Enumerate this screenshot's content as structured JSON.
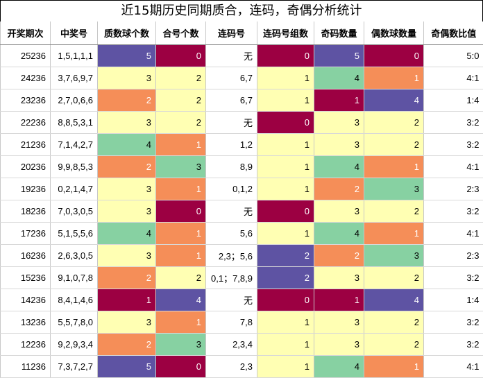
{
  "title": "近15期历史同期质合，连码，奇偶分析统计",
  "headers": [
    "开奖期次",
    "中奖号",
    "质数球个数",
    "合号个数",
    "连码号",
    "连码号组数",
    "奇码数量",
    "偶数球数量",
    "奇偶数比值"
  ],
  "colors": {
    "yellow": "#ffffb3",
    "orange": "#f58e58",
    "green": "#87d1a2",
    "purple": "#5e53a3",
    "crimson": "#9c0042",
    "white": "#ffffff"
  },
  "rows": [
    {
      "cells": [
        "25236",
        "1,5,1,1,1",
        "5",
        "0",
        "无",
        "0",
        "5",
        "0",
        "5:0"
      ],
      "fills": [
        "white",
        "white",
        "purple",
        "crimson",
        "white",
        "crimson",
        "purple",
        "crimson",
        "white"
      ]
    },
    {
      "cells": [
        "24236",
        "3,7,6,9,7",
        "3",
        "2",
        "6,7",
        "1",
        "4",
        "1",
        "4:1"
      ],
      "fills": [
        "white",
        "white",
        "yellow",
        "yellow",
        "white",
        "yellow",
        "green",
        "orange",
        "white"
      ]
    },
    {
      "cells": [
        "23236",
        "2,7,0,6,6",
        "2",
        "2",
        "6,7",
        "1",
        "1",
        "4",
        "1:4"
      ],
      "fills": [
        "white",
        "white",
        "orange",
        "yellow",
        "white",
        "yellow",
        "crimson",
        "purple",
        "white"
      ]
    },
    {
      "cells": [
        "22236",
        "8,8,5,3,1",
        "3",
        "2",
        "无",
        "0",
        "3",
        "2",
        "3:2"
      ],
      "fills": [
        "white",
        "white",
        "yellow",
        "yellow",
        "white",
        "crimson",
        "yellow",
        "yellow",
        "white"
      ]
    },
    {
      "cells": [
        "21236",
        "7,1,4,2,7",
        "4",
        "1",
        "1,2",
        "1",
        "3",
        "2",
        "3:2"
      ],
      "fills": [
        "white",
        "white",
        "green",
        "orange",
        "white",
        "yellow",
        "yellow",
        "yellow",
        "white"
      ]
    },
    {
      "cells": [
        "20236",
        "9,9,8,5,3",
        "2",
        "3",
        "8,9",
        "1",
        "4",
        "1",
        "4:1"
      ],
      "fills": [
        "white",
        "white",
        "orange",
        "green",
        "white",
        "yellow",
        "green",
        "orange",
        "white"
      ]
    },
    {
      "cells": [
        "19236",
        "0,2,1,4,7",
        "3",
        "1",
        "0,1,2",
        "1",
        "2",
        "3",
        "2:3"
      ],
      "fills": [
        "white",
        "white",
        "yellow",
        "orange",
        "white",
        "yellow",
        "orange",
        "green",
        "white"
      ]
    },
    {
      "cells": [
        "18236",
        "7,0,3,0,5",
        "3",
        "0",
        "无",
        "0",
        "3",
        "2",
        "3:2"
      ],
      "fills": [
        "white",
        "white",
        "yellow",
        "crimson",
        "white",
        "crimson",
        "yellow",
        "yellow",
        "white"
      ]
    },
    {
      "cells": [
        "17236",
        "5,1,5,5,6",
        "4",
        "1",
        "5,6",
        "1",
        "4",
        "1",
        "4:1"
      ],
      "fills": [
        "white",
        "white",
        "green",
        "orange",
        "white",
        "yellow",
        "green",
        "orange",
        "white"
      ]
    },
    {
      "cells": [
        "16236",
        "2,6,3,0,5",
        "3",
        "1",
        "2,3；5,6",
        "2",
        "2",
        "3",
        "2:3"
      ],
      "fills": [
        "white",
        "white",
        "yellow",
        "orange",
        "white",
        "purple",
        "orange",
        "green",
        "white"
      ]
    },
    {
      "cells": [
        "15236",
        "9,1,0,7,8",
        "2",
        "2",
        "0,1；7,8,9",
        "2",
        "3",
        "2",
        "3:2"
      ],
      "fills": [
        "white",
        "white",
        "orange",
        "yellow",
        "white",
        "purple",
        "yellow",
        "yellow",
        "white"
      ]
    },
    {
      "cells": [
        "14236",
        "8,4,1,4,6",
        "1",
        "4",
        "无",
        "0",
        "1",
        "4",
        "1:4"
      ],
      "fills": [
        "white",
        "white",
        "crimson",
        "purple",
        "white",
        "crimson",
        "crimson",
        "purple",
        "white"
      ]
    },
    {
      "cells": [
        "13236",
        "5,5,7,8,0",
        "3",
        "1",
        "7,8",
        "1",
        "3",
        "2",
        "3:2"
      ],
      "fills": [
        "white",
        "white",
        "yellow",
        "orange",
        "white",
        "yellow",
        "yellow",
        "yellow",
        "white"
      ]
    },
    {
      "cells": [
        "12236",
        "9,2,9,3,4",
        "2",
        "3",
        "2,3,4",
        "1",
        "3",
        "2",
        "3:2"
      ],
      "fills": [
        "white",
        "white",
        "orange",
        "green",
        "white",
        "yellow",
        "yellow",
        "yellow",
        "white"
      ]
    },
    {
      "cells": [
        "11236",
        "7,3,7,2,7",
        "5",
        "0",
        "2,3",
        "1",
        "4",
        "1",
        "4:1"
      ],
      "fills": [
        "white",
        "white",
        "purple",
        "crimson",
        "white",
        "yellow",
        "green",
        "orange",
        "white"
      ]
    }
  ]
}
